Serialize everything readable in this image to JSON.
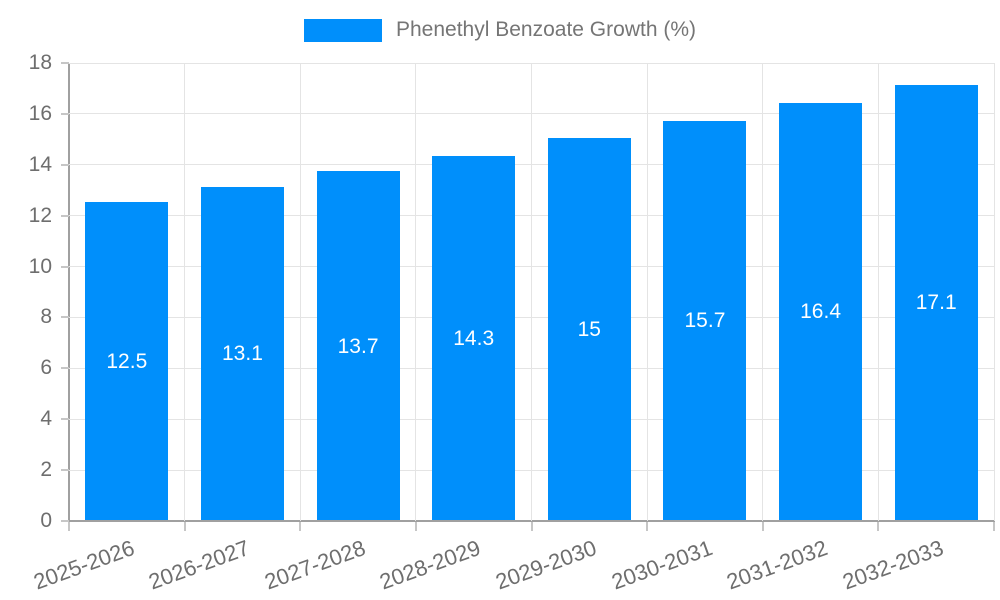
{
  "chart_data": {
    "type": "bar",
    "categories": [
      "2025-2026",
      "2026-2027",
      "2027-2028",
      "2028-2029",
      "2029-2030",
      "2030-2031",
      "2031-2032",
      "2032-2033"
    ],
    "series": [
      {
        "name": "Phenethyl Benzoate Growth (%)",
        "values": [
          12.5,
          13.1,
          13.7,
          14.3,
          15,
          15.7,
          16.4,
          17.1
        ],
        "value_labels": [
          "12.5",
          "13.1",
          "13.7",
          "14.3",
          "15",
          "15.7",
          "16.4",
          "17.1"
        ]
      }
    ],
    "title": "",
    "xlabel": "",
    "ylabel": "",
    "ylim": [
      0,
      18
    ],
    "ytick_step": 2,
    "grid": true,
    "legend_position": "top-center",
    "colors": {
      "bar": "#008ffb",
      "grid": "#e4e4e4",
      "axis": "#a0a0a0",
      "tick": "#c6c6c6",
      "axis_label_text": "#6e6e6e",
      "legend_text": "#757575",
      "bar_value_text": "#ffffff",
      "background": "#ffffff"
    }
  }
}
